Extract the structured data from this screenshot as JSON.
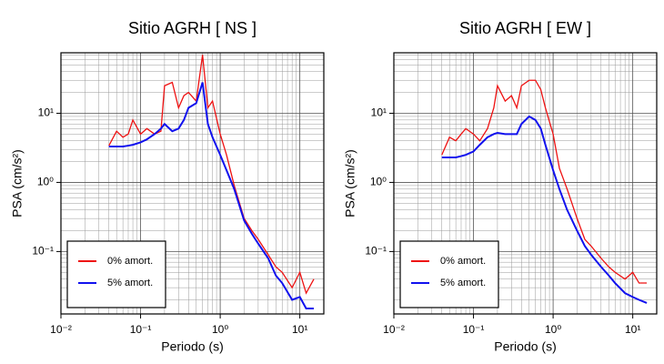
{
  "chart_data": [
    {
      "type": "line",
      "title": "Sitio AGRH [ NS ]",
      "x_label": "Periodo (s)",
      "y_label": "PSA (cm/s²)",
      "log_x": true,
      "log_y": true,
      "grid": true,
      "minor_grid": true,
      "legend": "lower left",
      "xlim": [
        0.01,
        20
      ],
      "ylim": [
        0.0125,
        75
      ],
      "xticks": [
        {
          "value": 0.01,
          "label": "10⁻²"
        },
        {
          "value": 0.1,
          "label": "10⁻¹"
        },
        {
          "value": 1,
          "label": "10⁰"
        },
        {
          "value": 10,
          "label": "10¹"
        }
      ],
      "yticks": [
        {
          "value": 0.1,
          "label": "10⁻¹"
        },
        {
          "value": 1,
          "label": "10⁰"
        },
        {
          "value": 10,
          "label": "10¹"
        }
      ],
      "x": [
        0.04,
        0.05,
        0.06,
        0.07,
        0.08,
        0.1,
        0.12,
        0.15,
        0.18,
        0.2,
        0.25,
        0.3,
        0.35,
        0.4,
        0.5,
        0.6,
        0.7,
        0.8,
        1.0,
        1.2,
        1.5,
        2,
        2.5,
        3,
        4,
        5,
        6,
        8,
        10,
        12,
        15
      ],
      "series": [
        {
          "name": "0% amort.",
          "color": "#ee1111",
          "values": [
            3.4,
            5.5,
            4.5,
            5,
            8,
            5,
            6,
            5,
            5.5,
            25,
            28,
            12,
            18,
            20,
            15,
            70,
            12,
            15,
            5,
            2.5,
            0.9,
            0.3,
            0.2,
            0.15,
            0.09,
            0.06,
            0.05,
            0.03,
            0.05,
            0.025,
            0.04
          ]
        },
        {
          "name": "5% amort.",
          "color": "#1111ee",
          "values": [
            3.3,
            3.3,
            3.3,
            3.4,
            3.5,
            3.8,
            4.2,
            5,
            6,
            7,
            5.5,
            6,
            8,
            12,
            14,
            28,
            7,
            4.5,
            2.5,
            1.5,
            0.8,
            0.28,
            0.18,
            0.13,
            0.08,
            0.045,
            0.035,
            0.02,
            0.022,
            0.015,
            0.015
          ]
        }
      ]
    },
    {
      "type": "line",
      "title": "Sitio AGRH [ EW ]",
      "x_label": "Periodo (s)",
      "y_label": "PSA (cm/s²)",
      "log_x": true,
      "log_y": true,
      "grid": true,
      "minor_grid": true,
      "legend": "lower left",
      "xlim": [
        0.01,
        20
      ],
      "ylim": [
        0.0125,
        75
      ],
      "xticks": [
        {
          "value": 0.01,
          "label": "10⁻²"
        },
        {
          "value": 0.1,
          "label": "10⁻¹"
        },
        {
          "value": 1,
          "label": "10⁰"
        },
        {
          "value": 10,
          "label": "10¹"
        }
      ],
      "yticks": [
        {
          "value": 0.1,
          "label": "10⁻¹"
        },
        {
          "value": 1,
          "label": "10⁰"
        },
        {
          "value": 10,
          "label": "10¹"
        }
      ],
      "x": [
        0.04,
        0.05,
        0.06,
        0.07,
        0.08,
        0.1,
        0.12,
        0.15,
        0.18,
        0.2,
        0.25,
        0.3,
        0.35,
        0.4,
        0.5,
        0.6,
        0.7,
        0.8,
        1.0,
        1.2,
        1.5,
        2,
        2.5,
        3,
        4,
        5,
        6,
        8,
        10,
        12,
        15
      ],
      "series": [
        {
          "name": "0% amort.",
          "color": "#ee1111",
          "values": [
            2.5,
            4.5,
            4,
            5,
            6,
            5,
            4,
            6,
            12,
            25,
            15,
            18,
            12,
            25,
            30,
            30,
            22,
            12,
            5,
            1.6,
            0.8,
            0.3,
            0.15,
            0.12,
            0.08,
            0.06,
            0.05,
            0.04,
            0.05,
            0.035,
            0.035
          ]
        },
        {
          "name": "5% amort.",
          "color": "#1111ee",
          "values": [
            2.3,
            2.3,
            2.3,
            2.4,
            2.5,
            2.8,
            3.5,
            4.5,
            5,
            5.2,
            5,
            5,
            5,
            7,
            9,
            8,
            6,
            3.5,
            1.5,
            0.8,
            0.4,
            0.2,
            0.12,
            0.09,
            0.06,
            0.045,
            0.035,
            0.025,
            0.022,
            0.02,
            0.018
          ]
        }
      ]
    }
  ]
}
